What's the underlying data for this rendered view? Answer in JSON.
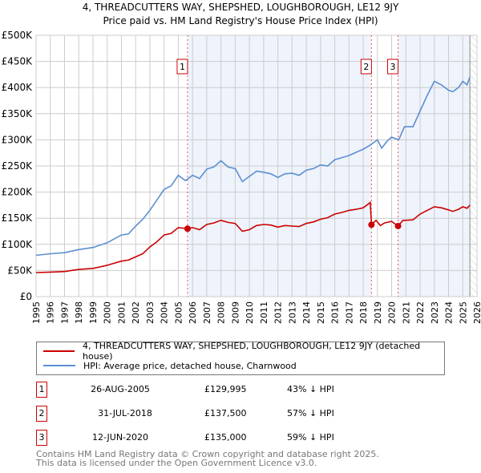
{
  "chart_data": {
    "type": "line",
    "title": "4, THREADCUTTERS WAY, SHEPSHED, LOUGHBOROUGH, LE12 9JY",
    "subtitle": "Price paid vs. HM Land Registry's House Price Index (HPI)",
    "xlim": [
      1995,
      2026
    ],
    "ylim": [
      0,
      500000
    ],
    "yticks": [
      0,
      50000,
      100000,
      150000,
      200000,
      250000,
      300000,
      350000,
      400000,
      450000,
      500000
    ],
    "ytick_labels": [
      "£0",
      "£50K",
      "£100K",
      "£150K",
      "£200K",
      "£250K",
      "£300K",
      "£350K",
      "£400K",
      "£450K",
      "£500K"
    ],
    "xticks": [
      1995,
      1996,
      1997,
      1998,
      1999,
      2000,
      2001,
      2002,
      2003,
      2004,
      2005,
      2006,
      2007,
      2008,
      2009,
      2010,
      2011,
      2012,
      2013,
      2014,
      2015,
      2016,
      2017,
      2018,
      2019,
      2020,
      2021,
      2022,
      2023,
      2024,
      2025,
      2026
    ],
    "grid": true,
    "shaded_ranges": [
      [
        2005.65,
        2018.58
      ],
      [
        2020.45,
        2025.5
      ]
    ],
    "hatched_from": 2025.5,
    "series": [
      {
        "name": "4, THREADCUTTERS WAY, SHEPSHED, LOUGHBOROUGH, LE12 9JY (detached house)",
        "color": "#cc0000",
        "x": [
          1995,
          1996,
          1997,
          1998,
          1999,
          2000,
          2001,
          2001.5,
          2002,
          2002.5,
          2003,
          2003.5,
          2004,
          2004.5,
          2005,
          2005.65,
          2006,
          2006.5,
          2007,
          2007.5,
          2008,
          2008.5,
          2009,
          2009.5,
          2010,
          2010.5,
          2011,
          2011.5,
          2012,
          2012.5,
          2013,
          2013.5,
          2014,
          2014.5,
          2015,
          2015.5,
          2016,
          2016.5,
          2017,
          2017.5,
          2018,
          2018.5,
          2018.58,
          2018.9,
          2019.2,
          2019.5,
          2020,
          2020.45,
          2020.8,
          2021,
          2021.5,
          2022,
          2022.5,
          2023,
          2023.5,
          2024,
          2024.3,
          2024.7,
          2025,
          2025.3,
          2025.5
        ],
        "values": [
          46000,
          47000,
          48000,
          52000,
          54000,
          60000,
          68000,
          70000,
          76000,
          82000,
          95000,
          105000,
          118000,
          121000,
          132000,
          129995,
          132000,
          128000,
          138000,
          141000,
          146000,
          142000,
          140000,
          125000,
          128000,
          136000,
          138000,
          137000,
          133000,
          136000,
          135000,
          134000,
          140000,
          143000,
          148000,
          151000,
          158000,
          161000,
          165000,
          167000,
          170000,
          180000,
          137500,
          146000,
          136000,
          141000,
          144000,
          135000,
          146000,
          146000,
          147000,
          158000,
          165000,
          172000,
          170000,
          166000,
          163000,
          167000,
          172000,
          169000,
          175000
        ]
      },
      {
        "name": "HPI: Average price, detached house, Charnwood",
        "color": "#5b8fd0",
        "x": [
          1995,
          1996,
          1997,
          1998,
          1999,
          2000,
          2001,
          2001.5,
          2002,
          2002.5,
          2003,
          2003.5,
          2004,
          2004.5,
          2005,
          2005.5,
          2006,
          2006.5,
          2007,
          2007.5,
          2008,
          2008.5,
          2009,
          2009.5,
          2010,
          2010.5,
          2011,
          2011.5,
          2012,
          2012.5,
          2013,
          2013.5,
          2014,
          2014.5,
          2015,
          2015.5,
          2016,
          2016.5,
          2017,
          2017.5,
          2018,
          2018.5,
          2019,
          2019.3,
          2019.7,
          2020,
          2020.5,
          2020.9,
          2021,
          2021.5,
          2022,
          2022.5,
          2023,
          2023.5,
          2024,
          2024.3,
          2024.7,
          2025,
          2025.3,
          2025.5
        ],
        "values": [
          79000,
          82000,
          84000,
          90000,
          94000,
          103000,
          118000,
          120000,
          135000,
          148000,
          165000,
          185000,
          205000,
          212000,
          232000,
          222000,
          232000,
          226000,
          244000,
          248000,
          260000,
          248000,
          245000,
          220000,
          230000,
          240000,
          238000,
          235000,
          228000,
          235000,
          236000,
          232000,
          242000,
          245000,
          252000,
          250000,
          262000,
          266000,
          270000,
          276000,
          282000,
          290000,
          300000,
          284000,
          298000,
          305000,
          300000,
          325000,
          325000,
          325000,
          355000,
          385000,
          412000,
          405000,
          395000,
          392000,
          400000,
          412000,
          405000,
          420000
        ]
      }
    ],
    "annotations": [
      {
        "label": "1",
        "x": 2005.65,
        "y": 129995
      },
      {
        "label": "2",
        "x": 2018.58,
        "y": 137500
      },
      {
        "label": "3",
        "x": 2020.45,
        "y": 135000
      }
    ]
  },
  "header": {
    "title": "4, THREADCUTTERS WAY, SHEPSHED, LOUGHBOROUGH, LE12 9JY",
    "subtitle": "Price paid vs. HM Land Registry's House Price Index (HPI)"
  },
  "legend": {
    "property": "4, THREADCUTTERS WAY, SHEPSHED, LOUGHBOROUGH, LE12 9JY (detached house)",
    "hpi": "HPI: Average price, detached house, Charnwood"
  },
  "transactions": [
    {
      "num": "1",
      "date": "26-AUG-2005",
      "price": "£129,995",
      "hpi": "43% ↓ HPI"
    },
    {
      "num": "2",
      "date": "31-JUL-2018",
      "price": "£137,500",
      "hpi": "57% ↓ HPI"
    },
    {
      "num": "3",
      "date": "12-JUN-2020",
      "price": "£135,000",
      "hpi": "59% ↓ HPI"
    }
  ],
  "footer": {
    "line1": "Contains HM Land Registry data © Crown copyright and database right 2025.",
    "line2": "This data is licensed under the Open Government Licence v3.0."
  }
}
